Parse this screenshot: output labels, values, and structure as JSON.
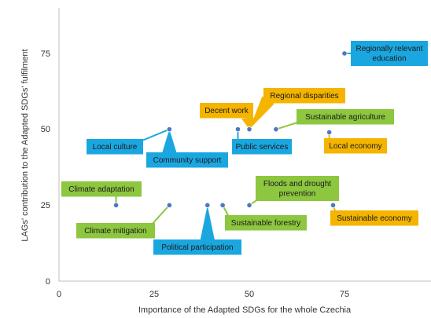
{
  "chart_data": {
    "type": "scatter",
    "xlabel": "Importance of the Adapted SDGs for the whole Czechia",
    "ylabel": "LAGs' contribution to the Adapted SDGs' fulfilment",
    "xlim": [
      0,
      95
    ],
    "ylim": [
      0,
      90
    ],
    "xticks": [
      "0",
      "25",
      "50",
      "75"
    ],
    "yticks": [
      "0",
      "25",
      "50",
      "75"
    ],
    "grid": false,
    "colors": {
      "blue": "#1aa7e0",
      "green": "#8dc63f",
      "orange": "#f5b400",
      "point": "#4a78c2"
    },
    "points": [
      {
        "name": "Regionally relevant education",
        "lines": [
          "Regionally relevant",
          "education"
        ],
        "x": 75,
        "y": 75,
        "color": "blue"
      },
      {
        "name": "Decent work",
        "lines": [
          "Decent work"
        ],
        "x": 50,
        "y": 50,
        "color": "orange"
      },
      {
        "name": "Regional disparities",
        "lines": [
          "Regional disparities"
        ],
        "x": 50,
        "y": 50,
        "color": "orange"
      },
      {
        "name": "Sustainable agriculture",
        "lines": [
          "Sustainable agriculture"
        ],
        "x": 57,
        "y": 50,
        "color": "green"
      },
      {
        "name": "Local culture",
        "lines": [
          "Local culture"
        ],
        "x": 29,
        "y": 50,
        "color": "blue"
      },
      {
        "name": "Community support",
        "lines": [
          "Community support"
        ],
        "x": 29,
        "y": 50,
        "color": "blue"
      },
      {
        "name": "Public services",
        "lines": [
          "Public services"
        ],
        "x": 47,
        "y": 50,
        "color": "blue"
      },
      {
        "name": "Local economy",
        "lines": [
          "Local economy"
        ],
        "x": 71,
        "y": 49,
        "color": "orange"
      },
      {
        "name": "Climate adaptation",
        "lines": [
          "Climate adaptation"
        ],
        "x": 15,
        "y": 25,
        "color": "green"
      },
      {
        "name": "Climate mitigation",
        "lines": [
          "Climate mitigation"
        ],
        "x": 29,
        "y": 25,
        "color": "green"
      },
      {
        "name": "Political participation",
        "lines": [
          "Political participation"
        ],
        "x": 39,
        "y": 25,
        "color": "blue"
      },
      {
        "name": "Sustainable forestry",
        "lines": [
          "Sustainable forestry"
        ],
        "x": 43,
        "y": 25,
        "color": "green"
      },
      {
        "name": "Floods and drought prevention",
        "lines": [
          "Floods and drought",
          "prevention"
        ],
        "x": 50,
        "y": 25,
        "color": "green"
      },
      {
        "name": "Sustainable economy",
        "lines": [
          "Sustainable economy"
        ],
        "x": 72,
        "y": 25,
        "color": "orange"
      }
    ]
  }
}
